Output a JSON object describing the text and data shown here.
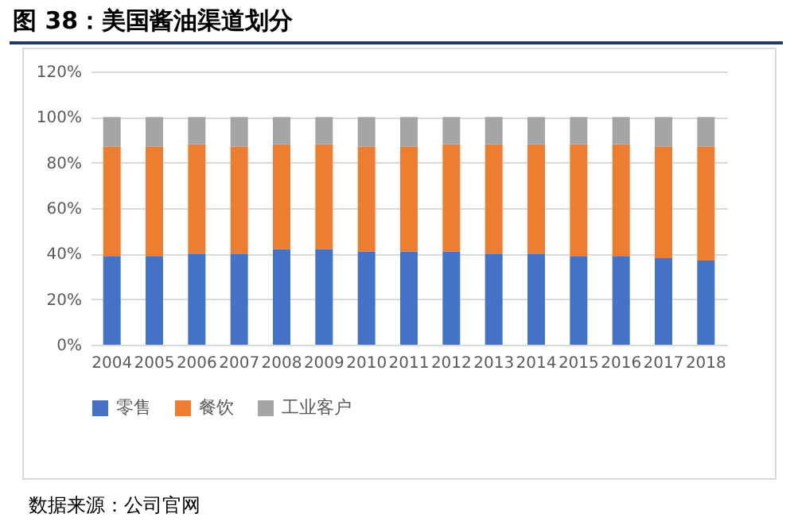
{
  "chart_data": {
    "type": "bar",
    "title": "图 38：美国酱油渠道划分",
    "annotations": [
      "数据来源：公司官网"
    ],
    "categories": [
      "2004",
      "2005",
      "2006",
      "2007",
      "2008",
      "2009",
      "2010",
      "2011",
      "2012",
      "2013",
      "2014",
      "2015",
      "2016",
      "2017",
      "2018"
    ],
    "series": [
      {
        "name": "零售",
        "color": "#4472c4",
        "values": [
          39,
          39,
          40,
          40,
          42,
          42,
          41,
          41,
          41,
          40,
          40,
          39,
          39,
          38,
          37
        ]
      },
      {
        "name": "餐饮",
        "color": "#ed7d31",
        "values": [
          48,
          48,
          48,
          47,
          46,
          46,
          46,
          46,
          47,
          48,
          48,
          49,
          49,
          49,
          50
        ]
      },
      {
        "name": "工业客户",
        "color": "#a5a5a5",
        "values": [
          13,
          13,
          12,
          13,
          12,
          12,
          13,
          13,
          12,
          12,
          12,
          12,
          12,
          13,
          13
        ]
      }
    ],
    "stacked": true,
    "ylim": [
      0,
      120
    ],
    "yticks": [
      {
        "value": 0,
        "label": "0%"
      },
      {
        "value": 20,
        "label": "20%"
      },
      {
        "value": 40,
        "label": "40%"
      },
      {
        "value": 60,
        "label": "60%"
      },
      {
        "value": 80,
        "label": "80%"
      },
      {
        "value": 100,
        "label": "100%"
      },
      {
        "value": 120,
        "label": "120%"
      }
    ],
    "grid": "y",
    "legend": "bottom"
  }
}
